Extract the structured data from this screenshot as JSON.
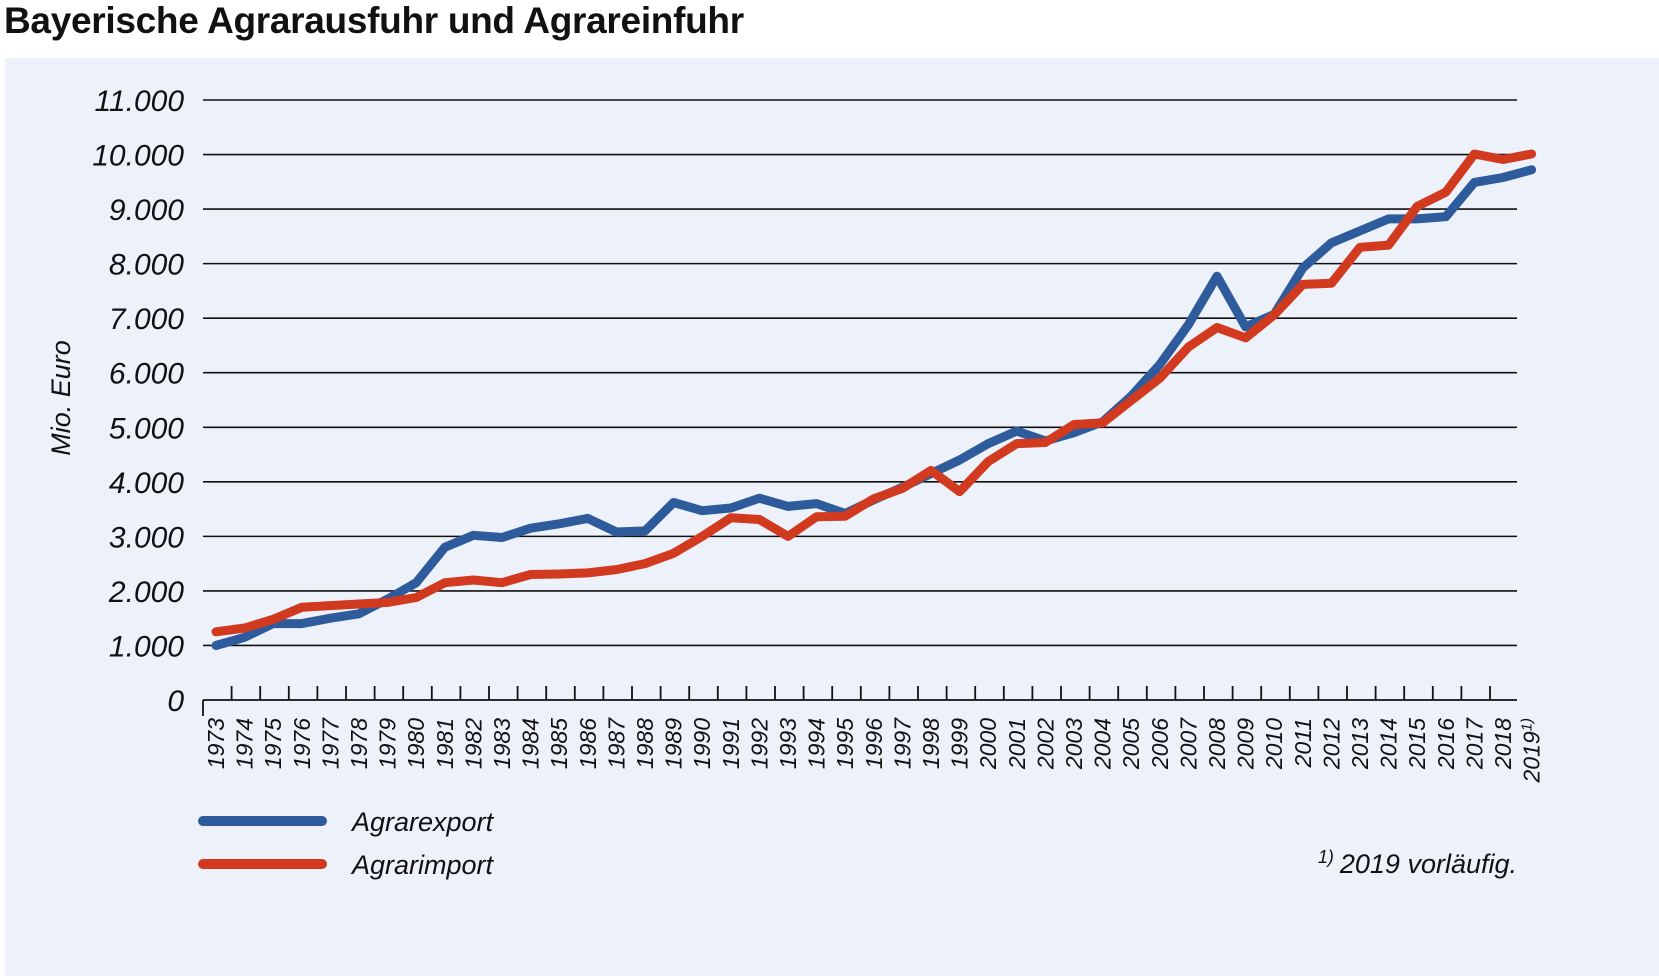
{
  "title": "Bayerische Agrarausfuhr und Agrareinfuhr",
  "footnote": "2019 vorläufig.",
  "footnote_mark": "1)",
  "chart_data": {
    "type": "line",
    "title": "Bayerische Agrarausfuhr und Agrareinfuhr",
    "ylabel": "Mio. Euro",
    "xlabel": "",
    "ylim": [
      0,
      11000
    ],
    "yticks": [
      0,
      1000,
      2000,
      3000,
      4000,
      5000,
      6000,
      7000,
      8000,
      9000,
      10000,
      11000
    ],
    "ytick_labels": [
      "0",
      "1.000",
      "2.000",
      "3.000",
      "4.000",
      "5.000",
      "6.000",
      "7.000",
      "8.000",
      "9.000",
      "10.000",
      "11.000"
    ],
    "categories": [
      "1973",
      "1974",
      "1975",
      "1976",
      "1977",
      "1978",
      "1979",
      "1980",
      "1981",
      "1982",
      "1983",
      "1984",
      "1985",
      "1986",
      "1987",
      "1988",
      "1989",
      "1990",
      "1991",
      "1992",
      "1993",
      "1994",
      "1995",
      "1996",
      "1997",
      "1998",
      "1999",
      "2000",
      "2001",
      "2002",
      "2003",
      "2004",
      "2005",
      "2006",
      "2007",
      "2008",
      "2009",
      "2010",
      "2011",
      "2012",
      "2013",
      "2014",
      "2015",
      "2016",
      "2017",
      "2018",
      "2019"
    ],
    "last_category_footnote": "1)",
    "grid": true,
    "legend_position": "bottom-left",
    "series": [
      {
        "name": "Agrarexport",
        "color": "#2e5b9c",
        "values": [
          1000,
          1150,
          1400,
          1400,
          1500,
          1580,
          1850,
          2150,
          2800,
          3020,
          2980,
          3150,
          3230,
          3330,
          3080,
          3100,
          3620,
          3470,
          3520,
          3700,
          3550,
          3600,
          3420,
          3670,
          3900,
          4150,
          4400,
          4700,
          4930,
          4750,
          4900,
          5100,
          5570,
          6150,
          6880,
          7770,
          6840,
          7070,
          7920,
          8380,
          8600,
          8820,
          8820,
          8860,
          9490,
          9580,
          9720
        ]
      },
      {
        "name": "Agrarimport",
        "color": "#d23a1f",
        "values": [
          1250,
          1320,
          1480,
          1700,
          1730,
          1760,
          1790,
          1880,
          2150,
          2200,
          2150,
          2300,
          2310,
          2330,
          2390,
          2500,
          2690,
          3000,
          3340,
          3310,
          3000,
          3360,
          3370,
          3690,
          3880,
          4210,
          3820,
          4370,
          4700,
          4720,
          5050,
          5080,
          5490,
          5900,
          6470,
          6830,
          6640,
          7060,
          7620,
          7640,
          8300,
          8340,
          9050,
          9310,
          10010,
          9910,
          10010
        ]
      }
    ]
  }
}
